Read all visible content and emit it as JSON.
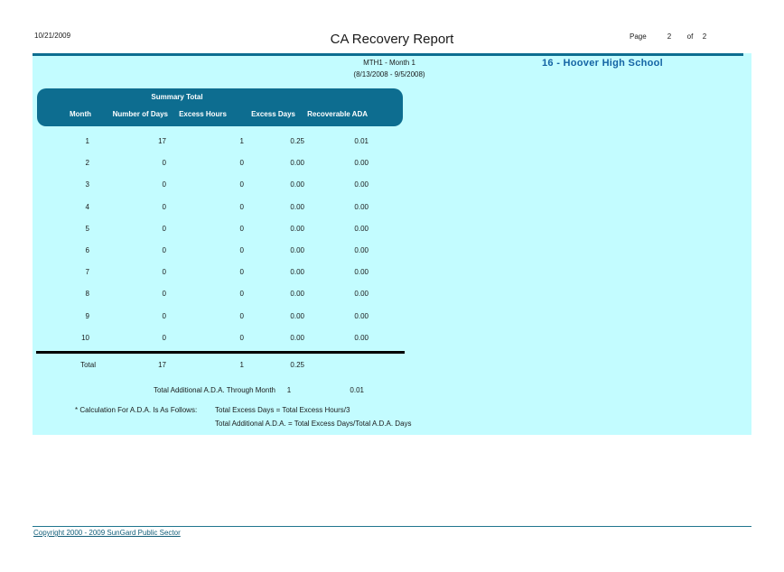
{
  "header": {
    "date": "10/21/2009",
    "title": "CA Recovery Report",
    "page_label": "Page",
    "page_number": "2",
    "of_label": "of",
    "page_total": "2"
  },
  "report": {
    "period_line1": "MTH1 - Month 1",
    "period_line2": "(8/13/2008 - 9/5/2008)",
    "school": "16 - Hoover High School"
  },
  "table": {
    "group_header": "Summary Total",
    "columns": [
      "Month",
      "Number of Days",
      "Excess Hours",
      "Excess Days",
      "Recoverable ADA"
    ],
    "rows": [
      [
        "1",
        "17",
        "1",
        "0.25",
        "0.01"
      ],
      [
        "2",
        "0",
        "0",
        "0.00",
        "0.00"
      ],
      [
        "3",
        "0",
        "0",
        "0.00",
        "0.00"
      ],
      [
        "4",
        "0",
        "0",
        "0.00",
        "0.00"
      ],
      [
        "5",
        "0",
        "0",
        "0.00",
        "0.00"
      ],
      [
        "6",
        "0",
        "0",
        "0.00",
        "0.00"
      ],
      [
        "7",
        "0",
        "0",
        "0.00",
        "0.00"
      ],
      [
        "8",
        "0",
        "0",
        "0.00",
        "0.00"
      ],
      [
        "9",
        "0",
        "0",
        "0.00",
        "0.00"
      ],
      [
        "10",
        "0",
        "0",
        "0.00",
        "0.00"
      ]
    ],
    "total_row": {
      "label": "Total",
      "number_of_days": "17",
      "excess_hours": "1",
      "excess_days": "0.25",
      "recoverable_ada": ""
    }
  },
  "summary": {
    "total_additional_label": "Total Additional A.D.A. Through Month",
    "total_additional_month": "1",
    "total_additional_value": "0.01",
    "calc_note_label": "* Calculation For A.D.A. Is As Follows:",
    "calc_line1": "Total Excess Days = Total Excess Hours/3",
    "calc_line2": "Total Additional A.D.A. = Total Excess Days/Total A.D.A. Days"
  },
  "footer": {
    "copyright": "Copyright 2000 - 2009 SunGard Public Sector"
  },
  "colors": {
    "header_teal": "#0d6d90",
    "panel_bg": "#c3fcff",
    "school_blue": "#1464a4",
    "link_teal": "#125e79"
  }
}
